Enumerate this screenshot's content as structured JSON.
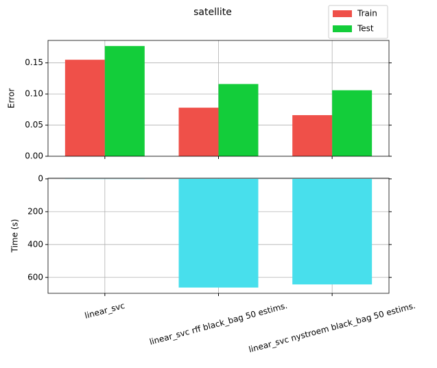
{
  "chart_data": [
    {
      "type": "bar",
      "title": "satellite",
      "ylabel": "Error",
      "series": [
        {
          "name": "Train",
          "color": "#ef5049",
          "values": [
            0.155,
            0.078,
            0.066
          ]
        },
        {
          "name": "Test",
          "color": "#13cd3a",
          "values": [
            0.177,
            0.116,
            0.106
          ]
        }
      ],
      "ylim": [
        0,
        0.186
      ],
      "yticks": [
        {
          "value": 0,
          "label": "0.00"
        },
        {
          "value": 0.05,
          "label": "0.05"
        },
        {
          "value": 0.1,
          "label": "0.10"
        },
        {
          "value": 0.15,
          "label": "0.15"
        }
      ],
      "grid": true,
      "legend": "upper right"
    },
    {
      "type": "bar",
      "ylabel": "Time (s)",
      "categories": [
        "linear_svc",
        "linear_svc rff black_bag 50 estims.",
        "linear_svc nystroem black_bag 50 estims."
      ],
      "values": [
        1,
        662,
        643
      ],
      "color": "#48dfec",
      "ylim": [
        697,
        -4
      ],
      "yticks": [
        0,
        200,
        400,
        600
      ],
      "grid": true
    }
  ]
}
